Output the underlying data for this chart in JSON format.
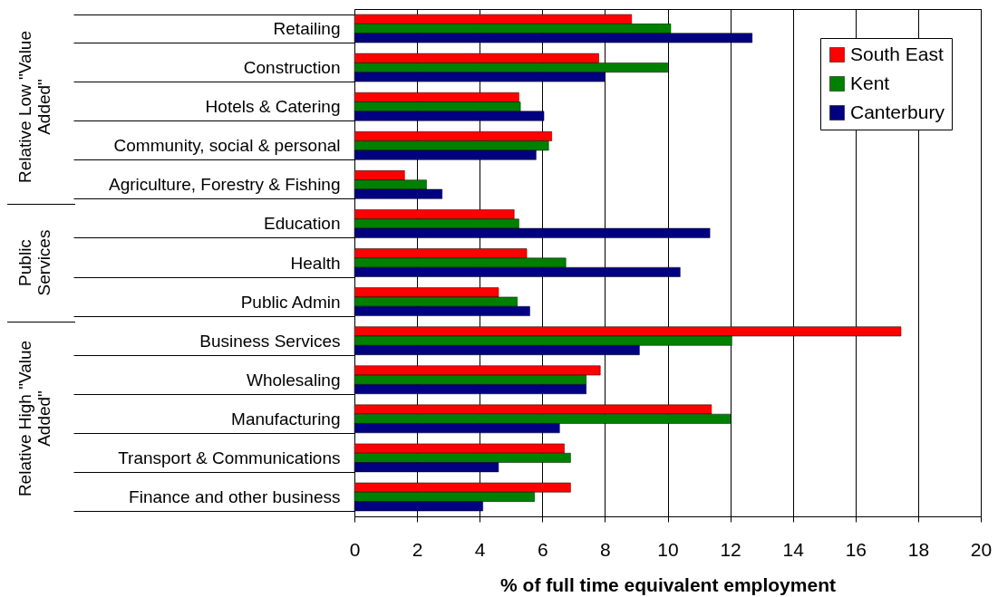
{
  "chart_data": {
    "type": "bar",
    "orientation": "horizontal",
    "xlabel": "% of full time equivalent employment",
    "categories": [
      "Retailing",
      "Construction",
      "Hotels & Catering",
      "Community, social & personal",
      "Agriculture, Forestry & Fishing",
      "Education",
      "Health",
      "Public Admin",
      "Business Services",
      "Wholesaling",
      "Manufacturing",
      "Transport & Communications",
      "Finance and other business"
    ],
    "series": [
      {
        "name": "South East",
        "color": "#ff0000",
        "values": [
          8.85,
          7.8,
          5.25,
          6.3,
          1.6,
          5.1,
          5.5,
          4.6,
          17.45,
          7.85,
          11.4,
          6.7,
          6.9
        ]
      },
      {
        "name": "Kent",
        "color": "#008000",
        "values": [
          10.1,
          10.0,
          5.3,
          6.2,
          2.3,
          5.25,
          6.75,
          5.2,
          12.05,
          7.4,
          12.0,
          6.9,
          5.75
        ]
      },
      {
        "name": "Canterbury",
        "color": "#000080",
        "values": [
          12.7,
          8.0,
          6.05,
          5.8,
          2.8,
          11.35,
          10.4,
          5.6,
          9.1,
          7.4,
          6.55,
          4.6,
          4.1
        ]
      }
    ],
    "xlim": [
      0,
      20
    ],
    "xticks": [
      0,
      2,
      4,
      6,
      8,
      10,
      12,
      14,
      16,
      18,
      20
    ],
    "grid": "x",
    "legend": "top right",
    "annotations": [
      "Relative Low \"Value Added\"",
      "Public Services",
      "Relative High \"Value Added\""
    ]
  }
}
